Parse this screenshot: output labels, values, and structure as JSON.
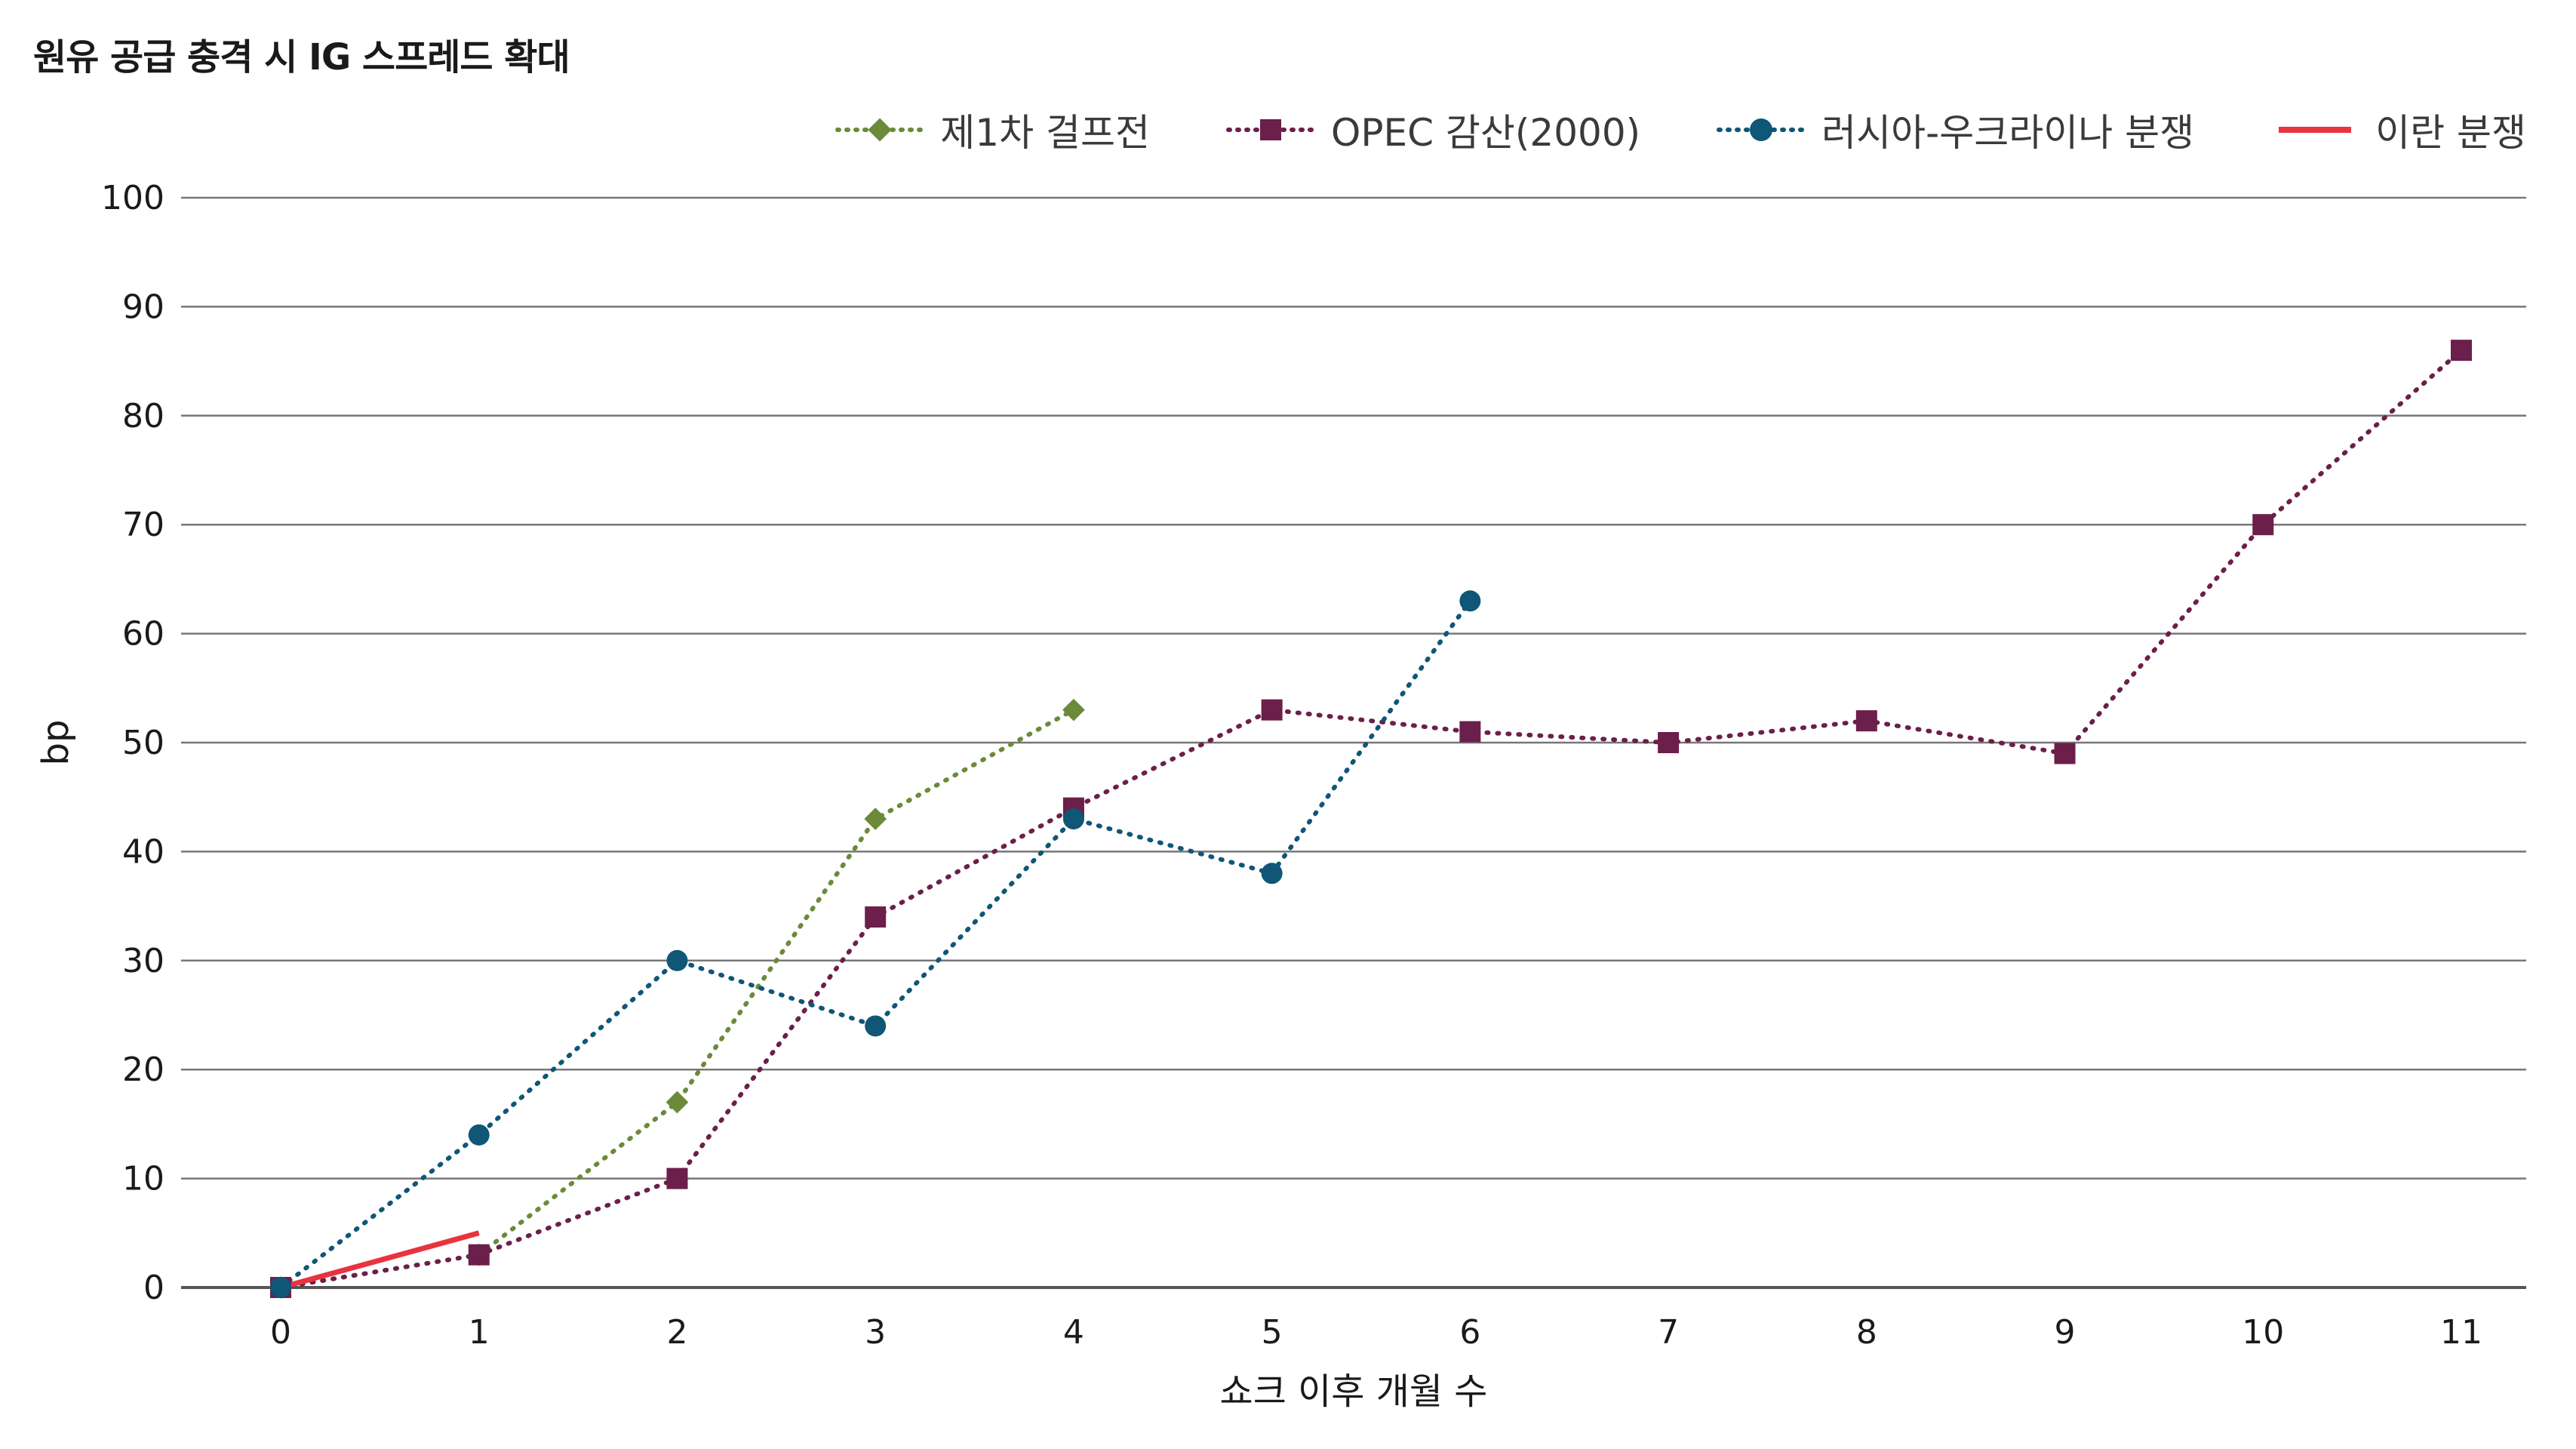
{
  "chart_data": {
    "type": "line",
    "title": "원유 공급 충격 시 IG 스프레드 확대",
    "xlabel": "쇼크 이후 개월 수",
    "ylabel": "bp",
    "x": [
      0,
      1,
      2,
      3,
      4,
      5,
      6,
      7,
      8,
      9,
      10,
      11
    ],
    "xlim": [
      0,
      11
    ],
    "ylim": [
      0,
      100
    ],
    "yticks": [
      0,
      10,
      20,
      30,
      40,
      50,
      60,
      70,
      80,
      90,
      100
    ],
    "grid": "horizontal",
    "legend_position": "top-right",
    "series": [
      {
        "name": "제1차 걸프전",
        "color": "#6b8a3a",
        "marker": "diamond",
        "line_style": "dotted",
        "x": [
          0,
          1,
          2,
          3,
          4
        ],
        "values": [
          0,
          3,
          17,
          43,
          53
        ]
      },
      {
        "name": "OPEC 감산(2000)",
        "color": "#6b1f4a",
        "marker": "square",
        "line_style": "dotted",
        "x": [
          0,
          1,
          2,
          3,
          4,
          5,
          6,
          7,
          8,
          9,
          10,
          11
        ],
        "values": [
          0,
          3,
          10,
          34,
          44,
          53,
          51,
          50,
          52,
          49,
          70,
          86
        ]
      },
      {
        "name": "러시아-우크라이나 분쟁",
        "color": "#0f5677",
        "marker": "circle",
        "line_style": "dotted",
        "x": [
          0,
          1,
          2,
          3,
          4,
          5,
          6
        ],
        "values": [
          0,
          14,
          30,
          24,
          43,
          38,
          63
        ]
      },
      {
        "name": "이란 분쟁",
        "color": "#e8343f",
        "marker": "none",
        "line_style": "solid",
        "x": [
          0,
          1
        ],
        "values": [
          0,
          5
        ]
      }
    ]
  }
}
